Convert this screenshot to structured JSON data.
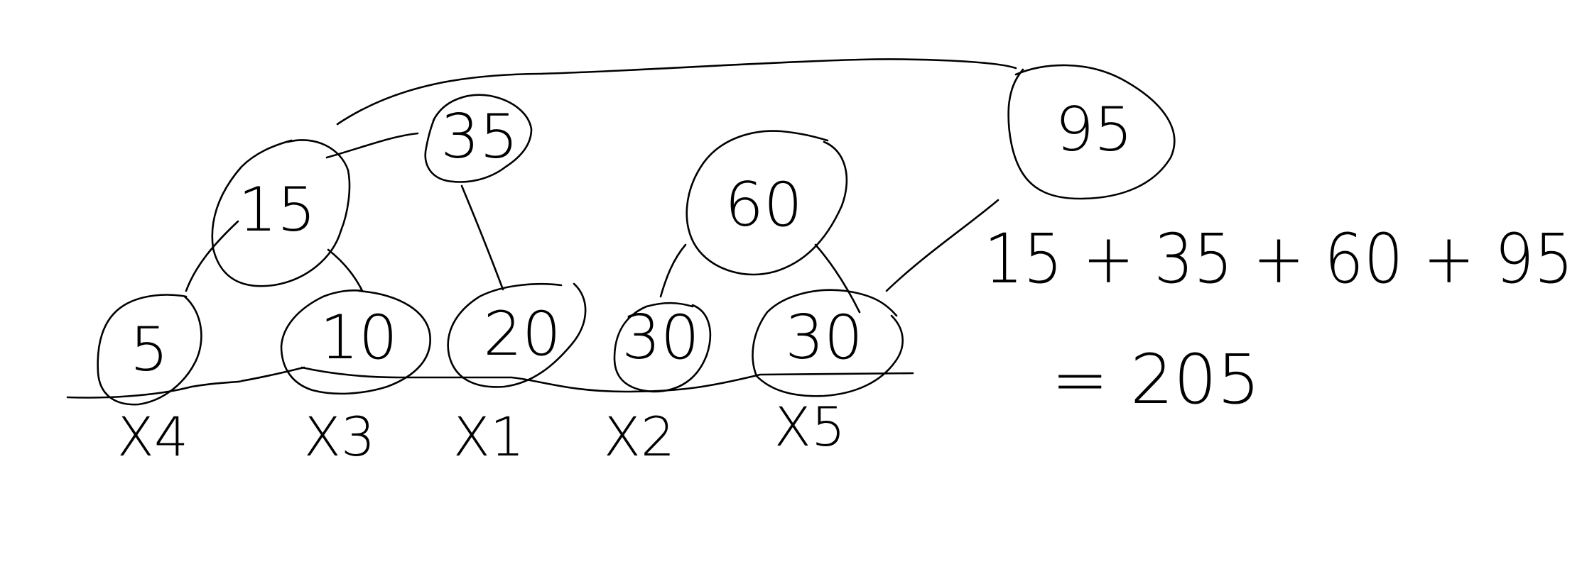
{
  "tree": {
    "root": "95",
    "nodes": [
      {
        "id": "n95",
        "value": "95"
      },
      {
        "id": "n35",
        "value": "35"
      },
      {
        "id": "n60",
        "value": "60"
      },
      {
        "id": "n15",
        "value": "15"
      },
      {
        "id": "n5",
        "value": "5"
      },
      {
        "id": "n10",
        "value": "10"
      },
      {
        "id": "n20",
        "value": "20"
      },
      {
        "id": "n30a",
        "value": "30"
      },
      {
        "id": "n30b",
        "value": "30"
      }
    ],
    "leaf_labels": [
      "X4",
      "X3",
      "X1",
      "X2",
      "X5"
    ],
    "edges": [
      [
        "n95",
        "n35"
      ],
      [
        "n95",
        "n60"
      ],
      [
        "n35",
        "n15"
      ],
      [
        "n35",
        "n20"
      ],
      [
        "n15",
        "n5"
      ],
      [
        "n15",
        "n10"
      ],
      [
        "n60",
        "n30a"
      ],
      [
        "n60",
        "n30b"
      ]
    ]
  },
  "equation": {
    "line1": "15 + 35 + 60 + 95",
    "line2": "= 205"
  }
}
